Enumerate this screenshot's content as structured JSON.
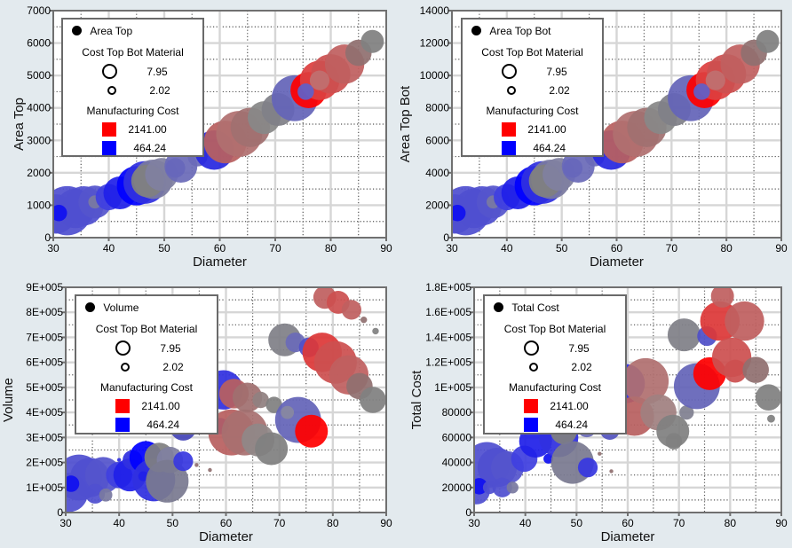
{
  "legend_common": {
    "size_title": "Cost Top Bot Material",
    "size_max": "7.95",
    "size_min": "2.02",
    "color_title": "Manufacturing Cost",
    "color_max": "2141.00",
    "color_min": "464.24",
    "color_max_hex": "#ff0000",
    "color_min_hex": "#0000ff"
  },
  "chart_data": [
    {
      "type": "scatter",
      "title": "",
      "series_name": "Area Top",
      "xlabel": "Diameter",
      "ylabel": "Area Top",
      "xlim": [
        30,
        90
      ],
      "ylim": [
        0,
        7000
      ],
      "xticks": [
        "30",
        "40",
        "50",
        "60",
        "70",
        "80",
        "90"
      ],
      "yticks": [
        "0",
        "1000",
        "2000",
        "3000",
        "4000",
        "5000",
        "6000",
        "7000"
      ],
      "grid": true,
      "legend_position": "top-left",
      "points": [
        {
          "x": 30.5,
          "y": 730,
          "s": 6,
          "c": "#5050d0"
        },
        {
          "x": 32.5,
          "y": 830,
          "s": 7.5,
          "c": "#5050d0"
        },
        {
          "x": 34,
          "y": 900,
          "s": 6,
          "c": "#5050d0"
        },
        {
          "x": 35.5,
          "y": 980,
          "s": 6,
          "c": "#5050d0"
        },
        {
          "x": 37.5,
          "y": 1100,
          "s": 5,
          "c": "#5555cc"
        },
        {
          "x": 31,
          "y": 760,
          "s": 2.5,
          "c": "#1010f0"
        },
        {
          "x": 37.5,
          "y": 1100,
          "s": 2,
          "c": "#7a7aa0"
        },
        {
          "x": 40,
          "y": 1250,
          "s": 4,
          "c": "#4040e0"
        },
        {
          "x": 42,
          "y": 1380,
          "s": 5,
          "c": "#2020e8"
        },
        {
          "x": 45,
          "y": 1600,
          "s": 6,
          "c": "#0000ff"
        },
        {
          "x": 46.5,
          "y": 1700,
          "s": 6.5,
          "c": "#3030e0"
        },
        {
          "x": 48,
          "y": 1800,
          "s": 6,
          "c": "#7a7aa0"
        },
        {
          "x": 47,
          "y": 1750,
          "s": 5,
          "c": "#808080"
        },
        {
          "x": 49.5,
          "y": 1950,
          "s": 5,
          "c": "#8080a0"
        },
        {
          "x": 52,
          "y": 2150,
          "s": 3,
          "c": "#3838e0"
        },
        {
          "x": 53,
          "y": 2200,
          "s": 5,
          "c": "#6a6ab8"
        },
        {
          "x": 56,
          "y": 2500,
          "s": 3,
          "c": "#6a6ab8"
        },
        {
          "x": 59,
          "y": 2700,
          "s": 6,
          "c": "#2828e0"
        },
        {
          "x": 61,
          "y": 2950,
          "s": 6.5,
          "c": "#b86060"
        },
        {
          "x": 63.5,
          "y": 3200,
          "s": 7,
          "c": "#b07070"
        },
        {
          "x": 65.5,
          "y": 3400,
          "s": 6,
          "c": "#a07070"
        },
        {
          "x": 68,
          "y": 3700,
          "s": 5,
          "c": "#888888"
        },
        {
          "x": 70.5,
          "y": 3950,
          "s": 5,
          "c": "#808088"
        },
        {
          "x": 73.5,
          "y": 4300,
          "s": 7,
          "c": "#6464b8"
        },
        {
          "x": 76,
          "y": 4550,
          "s": 5.5,
          "c": "#ff0000"
        },
        {
          "x": 78,
          "y": 4850,
          "s": 6,
          "c": "#dd4040"
        },
        {
          "x": 80,
          "y": 5050,
          "s": 6,
          "c": "#cc5050"
        },
        {
          "x": 82.5,
          "y": 5350,
          "s": 6,
          "c": "#c06060"
        },
        {
          "x": 85,
          "y": 5700,
          "s": 4,
          "c": "#907070"
        },
        {
          "x": 87.5,
          "y": 6050,
          "s": 3.5,
          "c": "#808080"
        },
        {
          "x": 75.5,
          "y": 4500,
          "s": 2.5,
          "c": "#6060c8"
        },
        {
          "x": 78,
          "y": 4850,
          "s": 3,
          "c": "#c07070"
        }
      ]
    },
    {
      "type": "scatter",
      "title": "",
      "series_name": "Area Top Bot",
      "xlabel": "Diameter",
      "ylabel": "Area Top Bot",
      "xlim": [
        30,
        90
      ],
      "ylim": [
        0,
        14000
      ],
      "xticks": [
        "30",
        "40",
        "50",
        "60",
        "70",
        "80",
        "90"
      ],
      "yticks": [
        "0",
        "2000",
        "4000",
        "6000",
        "8000",
        "10000",
        "12000",
        "14000"
      ],
      "grid": true,
      "legend_position": "top-left",
      "points": [
        {
          "x": 30.5,
          "y": 1460,
          "s": 6,
          "c": "#5050d0"
        },
        {
          "x": 32.5,
          "y": 1660,
          "s": 7.5,
          "c": "#5050d0"
        },
        {
          "x": 34,
          "y": 1800,
          "s": 6,
          "c": "#5050d0"
        },
        {
          "x": 35.5,
          "y": 1960,
          "s": 6,
          "c": "#5050d0"
        },
        {
          "x": 37.5,
          "y": 2200,
          "s": 5,
          "c": "#5555cc"
        },
        {
          "x": 31,
          "y": 1520,
          "s": 2.5,
          "c": "#1010f0"
        },
        {
          "x": 37.5,
          "y": 2200,
          "s": 2,
          "c": "#7a7aa0"
        },
        {
          "x": 40,
          "y": 2500,
          "s": 4,
          "c": "#4040e0"
        },
        {
          "x": 42,
          "y": 2760,
          "s": 5,
          "c": "#2020e8"
        },
        {
          "x": 45,
          "y": 3200,
          "s": 6,
          "c": "#0000ff"
        },
        {
          "x": 46.5,
          "y": 3400,
          "s": 6.5,
          "c": "#3030e0"
        },
        {
          "x": 48,
          "y": 3600,
          "s": 6,
          "c": "#7a7aa0"
        },
        {
          "x": 47,
          "y": 3500,
          "s": 5,
          "c": "#808080"
        },
        {
          "x": 49.5,
          "y": 3900,
          "s": 5,
          "c": "#8080a0"
        },
        {
          "x": 52,
          "y": 4300,
          "s": 3,
          "c": "#3838e0"
        },
        {
          "x": 53,
          "y": 4400,
          "s": 5,
          "c": "#6a6ab8"
        },
        {
          "x": 56,
          "y": 5000,
          "s": 3,
          "c": "#6a6ab8"
        },
        {
          "x": 59,
          "y": 5400,
          "s": 6,
          "c": "#2828e0"
        },
        {
          "x": 61,
          "y": 5900,
          "s": 6.5,
          "c": "#b86060"
        },
        {
          "x": 63.5,
          "y": 6400,
          "s": 7,
          "c": "#b07070"
        },
        {
          "x": 65.5,
          "y": 6800,
          "s": 6,
          "c": "#a07070"
        },
        {
          "x": 68,
          "y": 7400,
          "s": 5,
          "c": "#888888"
        },
        {
          "x": 70.5,
          "y": 7900,
          "s": 5,
          "c": "#808088"
        },
        {
          "x": 73.5,
          "y": 8600,
          "s": 7,
          "c": "#6464b8"
        },
        {
          "x": 76,
          "y": 9100,
          "s": 5.5,
          "c": "#ff0000"
        },
        {
          "x": 78,
          "y": 9700,
          "s": 6,
          "c": "#dd4040"
        },
        {
          "x": 80,
          "y": 10100,
          "s": 6,
          "c": "#cc5050"
        },
        {
          "x": 82.5,
          "y": 10700,
          "s": 6,
          "c": "#c06060"
        },
        {
          "x": 85,
          "y": 11400,
          "s": 4,
          "c": "#907070"
        },
        {
          "x": 87.5,
          "y": 12100,
          "s": 3.5,
          "c": "#808080"
        },
        {
          "x": 75.5,
          "y": 9000,
          "s": 2.5,
          "c": "#6060c8"
        },
        {
          "x": 78,
          "y": 9700,
          "s": 3,
          "c": "#c07070"
        }
      ]
    },
    {
      "type": "scatter",
      "title": "",
      "series_name": "Volume",
      "xlabel": "Diameter",
      "ylabel": "Volume",
      "xlim": [
        30,
        90
      ],
      "ylim": [
        0,
        900000
      ],
      "xticks": [
        "30",
        "40",
        "50",
        "60",
        "70",
        "80",
        "90"
      ],
      "yticks": [
        "0",
        "1E+005",
        "2E+005",
        "3E+005",
        "4E+005",
        "5E+005",
        "6E+005",
        "7E+005",
        "8E+005",
        "9E+005"
      ],
      "grid": true,
      "legend_position": "top-left",
      "points": [
        {
          "x": 30.5,
          "y": 80000,
          "s": 6,
          "c": "#5050d0"
        },
        {
          "x": 32.5,
          "y": 140000,
          "s": 7,
          "c": "#5050d0"
        },
        {
          "x": 34.5,
          "y": 140000,
          "s": 6,
          "c": "#5050d0"
        },
        {
          "x": 37,
          "y": 150000,
          "s": 5.5,
          "c": "#5555cc"
        },
        {
          "x": 31,
          "y": 115000,
          "s": 2.5,
          "c": "#1010f0"
        },
        {
          "x": 35.5,
          "y": 75000,
          "s": 3,
          "c": "#5050d0"
        },
        {
          "x": 37.5,
          "y": 70000,
          "s": 2,
          "c": "#7a7aa0"
        },
        {
          "x": 40,
          "y": 210000,
          "s": 0.6,
          "c": "#3030e0"
        },
        {
          "x": 40,
          "y": 150000,
          "s": 4,
          "c": "#4040e0"
        },
        {
          "x": 42,
          "y": 150000,
          "s": 5,
          "c": "#2020e8"
        },
        {
          "x": 42.5,
          "y": 210000,
          "s": 3,
          "c": "#3030e0"
        },
        {
          "x": 45,
          "y": 220000,
          "s": 5,
          "c": "#0000ff"
        },
        {
          "x": 46.5,
          "y": 130000,
          "s": 6.5,
          "c": "#3030e0"
        },
        {
          "x": 44.5,
          "y": 145000,
          "s": 1.5,
          "c": "#2020e8"
        },
        {
          "x": 47.5,
          "y": 220000,
          "s": 4.5,
          "c": "#808080"
        },
        {
          "x": 49.5,
          "y": 210000,
          "s": 4,
          "c": "#8080a0"
        },
        {
          "x": 49,
          "y": 125000,
          "s": 6.5,
          "c": "#7a7a90"
        },
        {
          "x": 52,
          "y": 205000,
          "s": 3,
          "c": "#3838e0"
        },
        {
          "x": 52,
          "y": 340000,
          "s": 4,
          "c": "#4646b8"
        },
        {
          "x": 54.5,
          "y": 190000,
          "s": 0.6,
          "c": "#907070"
        },
        {
          "x": 57,
          "y": 170000,
          "s": 0.6,
          "c": "#907070"
        },
        {
          "x": 59.5,
          "y": 490000,
          "s": 6,
          "c": "#3030e0"
        },
        {
          "x": 59,
          "y": 345000,
          "s": 2.5,
          "c": "#3030e0"
        },
        {
          "x": 61.5,
          "y": 475000,
          "s": 4.5,
          "c": "#b86060"
        },
        {
          "x": 61,
          "y": 320000,
          "s": 7,
          "c": "#b86060"
        },
        {
          "x": 63.5,
          "y": 320000,
          "s": 7,
          "c": "#a87070"
        },
        {
          "x": 64,
          "y": 460000,
          "s": 4.5,
          "c": "#a07070"
        },
        {
          "x": 66.5,
          "y": 450000,
          "s": 2.5,
          "c": "#908080"
        },
        {
          "x": 66,
          "y": 290000,
          "s": 5,
          "c": "#908888"
        },
        {
          "x": 68.5,
          "y": 255000,
          "s": 5,
          "c": "#808080"
        },
        {
          "x": 69,
          "y": 430000,
          "s": 2.5,
          "c": "#808080"
        },
        {
          "x": 71,
          "y": 690000,
          "s": 5,
          "c": "#808088"
        },
        {
          "x": 73,
          "y": 680000,
          "s": 3,
          "c": "#6a6ab8"
        },
        {
          "x": 75.5,
          "y": 660000,
          "s": 3,
          "c": "#5050c8"
        },
        {
          "x": 73.5,
          "y": 370000,
          "s": 7,
          "c": "#6464b8"
        },
        {
          "x": 71.5,
          "y": 400000,
          "s": 2,
          "c": "#8888a0"
        },
        {
          "x": 76,
          "y": 325000,
          "s": 5,
          "c": "#ff0000"
        },
        {
          "x": 78,
          "y": 640000,
          "s": 6,
          "c": "#dd3838"
        },
        {
          "x": 80.5,
          "y": 600000,
          "s": 6.5,
          "c": "#cc5050"
        },
        {
          "x": 83,
          "y": 550000,
          "s": 6,
          "c": "#c06060"
        },
        {
          "x": 85,
          "y": 505000,
          "s": 4,
          "c": "#907070"
        },
        {
          "x": 87.5,
          "y": 450000,
          "s": 4,
          "c": "#808080"
        },
        {
          "x": 78.5,
          "y": 860000,
          "s": 3.5,
          "c": "#c06060"
        },
        {
          "x": 81,
          "y": 840000,
          "s": 3.5,
          "c": "#cc5050"
        },
        {
          "x": 83.5,
          "y": 810000,
          "s": 3,
          "c": "#c06060"
        },
        {
          "x": 85.8,
          "y": 770000,
          "s": 1,
          "c": "#907070"
        },
        {
          "x": 88,
          "y": 725000,
          "s": 1,
          "c": "#808080"
        }
      ]
    },
    {
      "type": "scatter",
      "title": "",
      "series_name": "Total Cost",
      "xlabel": "Diameter",
      "ylabel": "Total Cost",
      "xlim": [
        30,
        90
      ],
      "ylim": [
        0,
        180000
      ],
      "xticks": [
        "30",
        "40",
        "50",
        "60",
        "70",
        "80",
        "90"
      ],
      "yticks": [
        "0",
        "20000",
        "40000",
        "60000",
        "80000",
        "1E+005",
        "1.2E+005",
        "1.4E+005",
        "1.6E+005",
        "1.8E+005"
      ],
      "grid": true,
      "legend_position": "top-left",
      "points": [
        {
          "x": 30.5,
          "y": 17000,
          "s": 4,
          "c": "#5050d0"
        },
        {
          "x": 32.5,
          "y": 38000,
          "s": 7,
          "c": "#5050d0"
        },
        {
          "x": 34.5,
          "y": 36000,
          "s": 6,
          "c": "#5050d0"
        },
        {
          "x": 36.5,
          "y": 36000,
          "s": 5,
          "c": "#5555cc"
        },
        {
          "x": 31,
          "y": 21000,
          "s": 2.5,
          "c": "#1010f0"
        },
        {
          "x": 33,
          "y": 20000,
          "s": 2,
          "c": "#5050d0"
        },
        {
          "x": 35.5,
          "y": 20000,
          "s": 3,
          "c": "#5050d0"
        },
        {
          "x": 37.5,
          "y": 20000,
          "s": 1.8,
          "c": "#7a7aa0"
        },
        {
          "x": 39.8,
          "y": 43000,
          "s": 4,
          "c": "#4040e0"
        },
        {
          "x": 42,
          "y": 57000,
          "s": 5,
          "c": "#2020e8"
        },
        {
          "x": 44.5,
          "y": 43000,
          "s": 1.5,
          "c": "#1010f0"
        },
        {
          "x": 46.5,
          "y": 60000,
          "s": 6,
          "c": "#3030e0"
        },
        {
          "x": 47.5,
          "y": 65000,
          "s": 4,
          "c": "#808080"
        },
        {
          "x": 49.2,
          "y": 40000,
          "s": 6.5,
          "c": "#7a7a90"
        },
        {
          "x": 52.2,
          "y": 36000,
          "s": 3,
          "c": "#3838e0"
        },
        {
          "x": 52,
          "y": 68000,
          "s": 3,
          "c": "#6a6ab8"
        },
        {
          "x": 54.5,
          "y": 47000,
          "s": 0.6,
          "c": "#907070"
        },
        {
          "x": 56.5,
          "y": 66000,
          "s": 3,
          "c": "#5555c0"
        },
        {
          "x": 56.8,
          "y": 33000,
          "s": 0.6,
          "c": "#907070"
        },
        {
          "x": 59.5,
          "y": 103000,
          "s": 6,
          "c": "#3030e0"
        },
        {
          "x": 61.3,
          "y": 77000,
          "s": 6,
          "c": "#b86060"
        },
        {
          "x": 63.5,
          "y": 105000,
          "s": 7,
          "c": "#b07070"
        },
        {
          "x": 66,
          "y": 80000,
          "s": 5.5,
          "c": "#a08080"
        },
        {
          "x": 68.8,
          "y": 65000,
          "s": 5,
          "c": "#808080"
        },
        {
          "x": 69,
          "y": 57000,
          "s": 2.5,
          "c": "#808080"
        },
        {
          "x": 71,
          "y": 142000,
          "s": 5,
          "c": "#808088"
        },
        {
          "x": 71.5,
          "y": 80000,
          "s": 2.2,
          "c": "#808090"
        },
        {
          "x": 73.5,
          "y": 101000,
          "s": 7,
          "c": "#6464b8"
        },
        {
          "x": 75.5,
          "y": 141000,
          "s": 3,
          "c": "#5050c8"
        },
        {
          "x": 76,
          "y": 111000,
          "s": 5,
          "c": "#ff0000"
        },
        {
          "x": 78,
          "y": 153000,
          "s": 6,
          "c": "#dd3838"
        },
        {
          "x": 82.8,
          "y": 153000,
          "s": 6,
          "c": "#c06060"
        },
        {
          "x": 78.5,
          "y": 173000,
          "s": 3.5,
          "c": "#c06060"
        },
        {
          "x": 80.3,
          "y": 124000,
          "s": 6,
          "c": "#cc5050"
        },
        {
          "x": 81,
          "y": 113000,
          "s": 3.5,
          "c": "#cc5050"
        },
        {
          "x": 85,
          "y": 114000,
          "s": 4,
          "c": "#907070"
        },
        {
          "x": 87.5,
          "y": 92000,
          "s": 4,
          "c": "#808080"
        },
        {
          "x": 88,
          "y": 75000,
          "s": 1.2,
          "c": "#808080"
        }
      ]
    }
  ]
}
